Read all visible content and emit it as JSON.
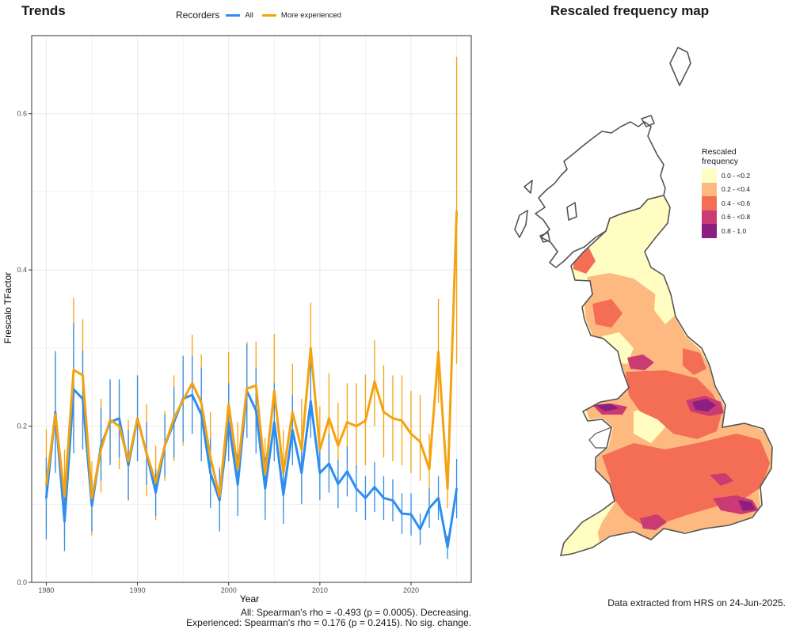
{
  "left_title": "Trends",
  "right_title": "Rescaled frequency map",
  "stats": {
    "all": "All: Spearman's rho = -0.493 (p = 0.0005). Decreasing.",
    "experienced": "Experienced: Spearman's rho = 0.176 (p = 0.2415). No sig. change."
  },
  "source_note": "Data extracted from HRS on 24-Jun-2025.",
  "colors": {
    "all": "#2e8ef0",
    "more_experienced": "#f5a20f",
    "grid": "#ebebeb",
    "panel_border": "#333333",
    "map_outline": "#555555"
  },
  "chart_data": [
    {
      "type": "line",
      "title": "Trends",
      "xlabel": "Year",
      "ylabel": "Frescalo TFactor",
      "xlim": [
        1978.4,
        2026.6
      ],
      "ylim": [
        0,
        0.7
      ],
      "xticks": [
        1980,
        1990,
        2000,
        2010,
        2020
      ],
      "xtick_labels": [
        "1980",
        "1990",
        "2000",
        "2010",
        "2020"
      ],
      "yticks": [
        0,
        0.2,
        0.4,
        0.6
      ],
      "ytick_labels": [
        "0.0",
        "0.2",
        "0.4",
        "0.6"
      ],
      "grid": true,
      "legend": {
        "title": "Recorders",
        "placement": "top",
        "entries": [
          "All",
          "More experienced"
        ]
      },
      "x": [
        1980,
        1981,
        1982,
        1983,
        1984,
        1985,
        1986,
        1987,
        1988,
        1989,
        1990,
        1991,
        1992,
        1993,
        1994,
        1995,
        1996,
        1997,
        1998,
        1999,
        2000,
        2001,
        2002,
        2003,
        2004,
        2005,
        2006,
        2007,
        2008,
        2009,
        2010,
        2011,
        2012,
        2013,
        2014,
        2015,
        2016,
        2017,
        2018,
        2019,
        2020,
        2021,
        2022,
        2023,
        2024,
        2025
      ],
      "series": [
        {
          "name": "All",
          "values": [
            0.108,
            0.218,
            0.078,
            0.247,
            0.235,
            0.098,
            0.175,
            0.205,
            0.21,
            0.15,
            0.21,
            0.165,
            0.115,
            0.175,
            0.205,
            0.235,
            0.24,
            0.215,
            0.14,
            0.105,
            0.205,
            0.125,
            0.245,
            0.22,
            0.12,
            0.205,
            0.112,
            0.195,
            0.14,
            0.232,
            0.14,
            0.152,
            0.126,
            0.142,
            0.12,
            0.108,
            0.122,
            0.108,
            0.105,
            0.088,
            0.087,
            0.068,
            0.095,
            0.108,
            0.045,
            0.12
          ],
          "lower": [
            0.055,
            0.14,
            0.04,
            0.165,
            0.17,
            0.065,
            0.13,
            0.15,
            0.16,
            0.105,
            0.155,
            0.125,
            0.085,
            0.135,
            0.16,
            0.18,
            0.19,
            0.155,
            0.095,
            0.065,
            0.155,
            0.085,
            0.185,
            0.165,
            0.08,
            0.155,
            0.075,
            0.15,
            0.1,
            0.185,
            0.105,
            0.115,
            0.095,
            0.11,
            0.09,
            0.08,
            0.09,
            0.08,
            0.078,
            0.062,
            0.06,
            0.048,
            0.07,
            0.08,
            0.03,
            0.082
          ],
          "upper": [
            0.16,
            0.296,
            0.116,
            0.332,
            0.297,
            0.131,
            0.224,
            0.26,
            0.26,
            0.195,
            0.265,
            0.205,
            0.145,
            0.215,
            0.25,
            0.29,
            0.29,
            0.275,
            0.185,
            0.145,
            0.255,
            0.165,
            0.305,
            0.275,
            0.16,
            0.255,
            0.15,
            0.24,
            0.18,
            0.28,
            0.175,
            0.19,
            0.157,
            0.174,
            0.15,
            0.136,
            0.154,
            0.136,
            0.132,
            0.114,
            0.114,
            0.088,
            0.12,
            0.136,
            0.06,
            0.158
          ]
        },
        {
          "name": "More experienced",
          "values": [
            0.125,
            0.215,
            0.11,
            0.272,
            0.265,
            0.108,
            0.17,
            0.208,
            0.2,
            0.155,
            0.21,
            0.165,
            0.128,
            0.175,
            0.21,
            0.233,
            0.255,
            0.23,
            0.16,
            0.11,
            0.228,
            0.145,
            0.248,
            0.252,
            0.138,
            0.245,
            0.14,
            0.218,
            0.17,
            0.3,
            0.17,
            0.21,
            0.175,
            0.205,
            0.2,
            0.207,
            0.257,
            0.218,
            0.21,
            0.207,
            0.19,
            0.18,
            0.145,
            0.295,
            0.12,
            0.475
          ],
          "lower": [
            0.068,
            0.145,
            0.055,
            0.175,
            0.185,
            0.06,
            0.115,
            0.155,
            0.145,
            0.105,
            0.155,
            0.11,
            0.08,
            0.13,
            0.155,
            0.175,
            0.195,
            0.165,
            0.105,
            0.07,
            0.165,
            0.09,
            0.185,
            0.185,
            0.09,
            0.17,
            0.09,
            0.16,
            0.115,
            0.24,
            0.12,
            0.155,
            0.125,
            0.15,
            0.145,
            0.15,
            0.2,
            0.16,
            0.155,
            0.15,
            0.14,
            0.13,
            0.1,
            0.23,
            0.095,
            0.28
          ],
          "upper": [
            0.196,
            0.29,
            0.17,
            0.364,
            0.337,
            0.155,
            0.235,
            0.257,
            0.255,
            0.208,
            0.265,
            0.228,
            0.175,
            0.22,
            0.265,
            0.29,
            0.317,
            0.292,
            0.218,
            0.148,
            0.295,
            0.205,
            0.308,
            0.308,
            0.185,
            0.318,
            0.195,
            0.28,
            0.235,
            0.358,
            0.225,
            0.268,
            0.23,
            0.255,
            0.255,
            0.266,
            0.31,
            0.278,
            0.265,
            0.265,
            0.245,
            0.24,
            0.19,
            0.363,
            0.15,
            0.673
          ]
        }
      ]
    },
    {
      "type": "heatmap",
      "title": "Rescaled frequency map",
      "legend": {
        "title_lines": [
          "Rescaled",
          "frequency"
        ],
        "placement": "right",
        "bins": [
          {
            "label": "0.0 - <0.2",
            "color": "#fffdc1"
          },
          {
            "label": "0.2 - <0.4",
            "color": "#fdb97f"
          },
          {
            "label": "0.4 - <0.6",
            "color": "#f36e55"
          },
          {
            "label": "0.6 - <0.8",
            "color": "#cb3b73"
          },
          {
            "label": "0.8 - 1.0",
            "color": "#8c1f80"
          }
        ]
      }
    }
  ]
}
